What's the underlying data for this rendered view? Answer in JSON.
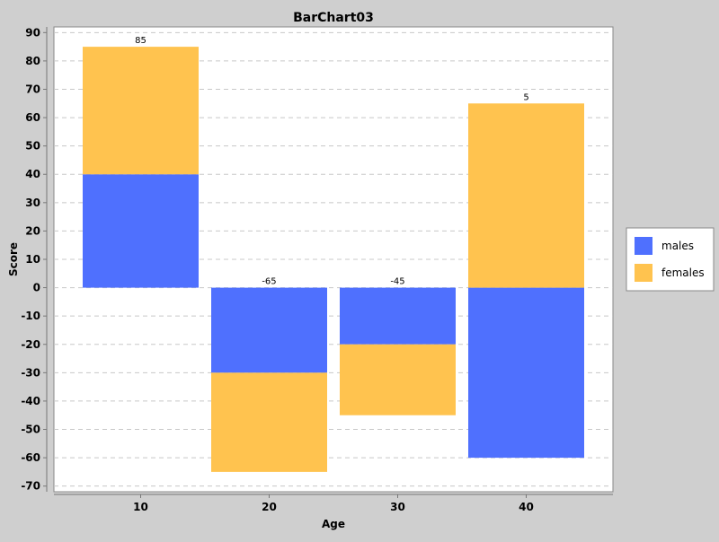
{
  "chart_data": {
    "type": "bar",
    "stacked": true,
    "title": "BarChart03",
    "xlabel": "Age",
    "ylabel": "Score",
    "categories": [
      "10",
      "20",
      "30",
      "40"
    ],
    "ylim": [
      -72,
      92
    ],
    "yticks": [
      90,
      80,
      70,
      60,
      50,
      40,
      30,
      20,
      10,
      0,
      -10,
      -20,
      -30,
      -40,
      -50,
      -60,
      -70
    ],
    "grid": true,
    "legend": "right",
    "series": [
      {
        "name": "males",
        "values": [
          40,
          -30,
          -20,
          -60
        ],
        "color": "#4f70fe"
      },
      {
        "name": "females",
        "values": [
          45,
          -35,
          -25,
          65
        ],
        "color": "#ffc34f"
      }
    ],
    "totals": [
      85,
      -65,
      -45,
      5
    ],
    "colors": {
      "plot_background": "#ffffff",
      "page_background": "#cfcfcf",
      "gridline": "#c8c8c8",
      "label_on_males": "#ffffff",
      "label_on_females": "#000000"
    }
  }
}
